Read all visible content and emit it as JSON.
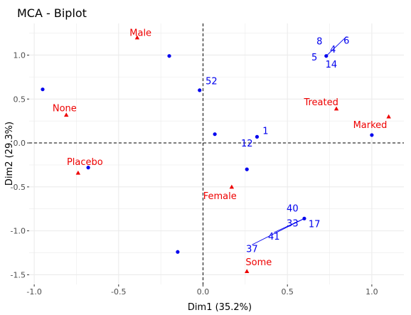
{
  "chart_data": {
    "type": "scatter",
    "title": "MCA - Biplot",
    "xlabel": "Dim1 (35.2%)",
    "ylabel": "Dim2 (29.3%)",
    "xlim": [
      -1.03,
      1.19
    ],
    "ylim": [
      -1.61,
      1.36
    ],
    "x_ticks": [
      -1.0,
      -0.5,
      0.0,
      0.5,
      1.0
    ],
    "x_tick_labels": [
      "-1.0",
      "-0.5",
      "0.0",
      "0.5",
      "1.0"
    ],
    "y_ticks": [
      -1.5,
      -1.0,
      -0.5,
      0.0,
      0.5,
      1.0
    ],
    "y_tick_labels": [
      "-1.5",
      "-1.0",
      "-0.5",
      "0.0",
      "0.5",
      "1.0"
    ],
    "grid": true,
    "reference_lines": {
      "x": 0,
      "y": 0,
      "style": "dashed"
    },
    "colors": {
      "individuals": "#0000ee",
      "variables": "#ee0000",
      "grid": "#ebebeb"
    },
    "individual_points": [
      {
        "x": -0.95,
        "y": 0.61
      },
      {
        "x": -0.2,
        "y": 0.99
      },
      {
        "x": -0.02,
        "y": 0.6
      },
      {
        "x": 0.07,
        "y": 0.1
      },
      {
        "x": 0.32,
        "y": 0.07
      },
      {
        "x": 0.73,
        "y": 0.99
      },
      {
        "x": 1.0,
        "y": 0.09
      },
      {
        "x": 0.26,
        "y": -0.3
      },
      {
        "x": -0.68,
        "y": -0.28
      },
      {
        "x": 0.6,
        "y": -0.86
      },
      {
        "x": -0.15,
        "y": -1.24
      }
    ],
    "individual_labels": [
      {
        "text": "52",
        "x": 0.05,
        "y": 0.67,
        "lx": -0.02,
        "ly": 0.6
      },
      {
        "text": "1",
        "x": 0.37,
        "y": 0.1,
        "lx": 0.32,
        "ly": 0.07
      },
      {
        "text": "12",
        "x": 0.26,
        "y": -0.04,
        "lx": 0.32,
        "ly": 0.07
      },
      {
        "text": "8",
        "x": 0.69,
        "y": 1.12,
        "lx": 0.73,
        "ly": 0.99
      },
      {
        "text": "6",
        "x": 0.85,
        "y": 1.13,
        "lx": 0.73,
        "ly": 0.99
      },
      {
        "text": "4",
        "x": 0.77,
        "y": 1.03,
        "lx": 0.73,
        "ly": 0.99
      },
      {
        "text": "5",
        "x": 0.66,
        "y": 0.94,
        "lx": 0.73,
        "ly": 0.99
      },
      {
        "text": "14",
        "x": 0.76,
        "y": 0.86,
        "lx": 0.73,
        "ly": 0.99
      },
      {
        "text": "40",
        "x": 0.53,
        "y": -0.78,
        "lx": 0.6,
        "ly": -0.86
      },
      {
        "text": "33",
        "x": 0.53,
        "y": -0.95,
        "lx": 0.6,
        "ly": -0.86
      },
      {
        "text": "17",
        "x": 0.66,
        "y": -0.96,
        "lx": 0.6,
        "ly": -0.86
      },
      {
        "text": "41",
        "x": 0.42,
        "y": -1.1,
        "lx": 0.6,
        "ly": -0.86
      },
      {
        "text": "37",
        "x": 0.29,
        "y": -1.24,
        "lx": 0.6,
        "ly": -0.86
      }
    ],
    "variable_points": [
      {
        "text": "Male",
        "x": -0.39,
        "y": 1.2,
        "tx": -0.37,
        "ty": 1.22
      },
      {
        "text": "None",
        "x": -0.81,
        "y": 0.32,
        "tx": -0.82,
        "ty": 0.36
      },
      {
        "text": "Treated",
        "x": 0.79,
        "y": 0.39,
        "tx": 0.7,
        "ty": 0.43
      },
      {
        "text": "Marked",
        "x": 1.1,
        "y": 0.3,
        "tx": 0.99,
        "ty": 0.17
      },
      {
        "text": "Placebo",
        "x": -0.74,
        "y": -0.34,
        "tx": -0.7,
        "ty": -0.25
      },
      {
        "text": "Female",
        "x": 0.17,
        "y": -0.5,
        "tx": 0.1,
        "ty": -0.64
      },
      {
        "text": "Some",
        "x": 0.26,
        "y": -1.46,
        "tx": 0.33,
        "ty": -1.39
      }
    ]
  }
}
